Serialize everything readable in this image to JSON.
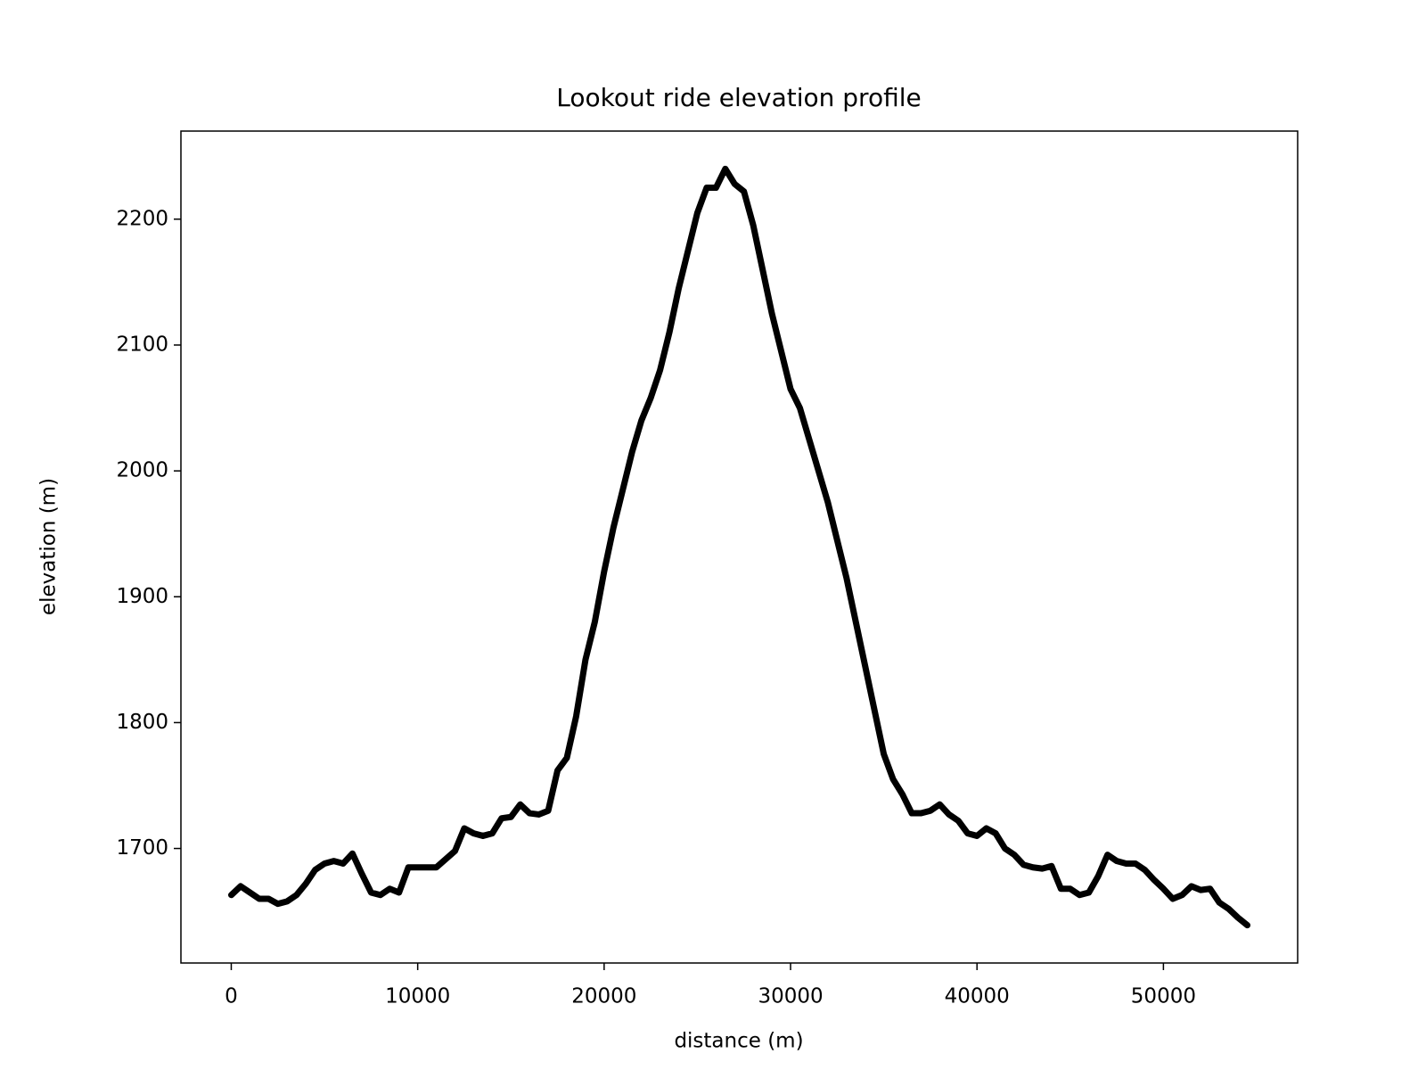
{
  "chart_data": {
    "type": "line",
    "title": "Lookout ride elevation profile",
    "x_label": "distance (m)",
    "y_label": "elevation (m)",
    "x": [
      0,
      500,
      1000,
      1500,
      2000,
      2500,
      3000,
      3500,
      4000,
      4500,
      5000,
      5500,
      6000,
      6500,
      7000,
      7500,
      8000,
      8500,
      9000,
      9500,
      10000,
      11000,
      12000,
      12500,
      13000,
      13500,
      14000,
      14500,
      15000,
      15500,
      16000,
      16500,
      17000,
      17500,
      18000,
      18500,
      19000,
      19500,
      20000,
      20500,
      21000,
      21500,
      22000,
      22500,
      23000,
      23500,
      24000,
      24500,
      25000,
      25500,
      26000,
      26500,
      27000,
      27500,
      28000,
      28500,
      29000,
      29500,
      30000,
      30500,
      31000,
      31500,
      32000,
      32500,
      33000,
      33500,
      34000,
      34500,
      35000,
      35500,
      36000,
      36500,
      37000,
      37500,
      38000,
      38500,
      39000,
      39500,
      40000,
      40500,
      41000,
      41500,
      42000,
      42500,
      43000,
      43500,
      44000,
      44500,
      45000,
      45500,
      46000,
      46500,
      47000,
      47500,
      48000,
      48500,
      49000,
      49500,
      50000,
      50500,
      51000,
      51500,
      52000,
      52500,
      53000,
      53500,
      54000,
      54500
    ],
    "series": [
      {
        "name": "elevation",
        "color": "#000000",
        "values": [
          1663,
          1670,
          1665,
          1660,
          1660,
          1656,
          1658,
          1663,
          1672,
          1683,
          1688,
          1690,
          1688,
          1696,
          1680,
          1665,
          1663,
          1668,
          1665,
          1685,
          1685,
          1685,
          1698,
          1716,
          1712,
          1710,
          1712,
          1724,
          1725,
          1735,
          1728,
          1727,
          1730,
          1762,
          1772,
          1805,
          1850,
          1880,
          1920,
          1955,
          1985,
          2015,
          2040,
          2058,
          2080,
          2110,
          2145,
          2175,
          2205,
          2225,
          2225,
          2240,
          2228,
          2222,
          2195,
          2160,
          2125,
          2095,
          2065,
          2050,
          2025,
          2000,
          1975,
          1945,
          1915,
          1880,
          1845,
          1810,
          1775,
          1755,
          1743,
          1728,
          1728,
          1730,
          1735,
          1727,
          1722,
          1712,
          1710,
          1716,
          1712,
          1700,
          1695,
          1687,
          1685,
          1684,
          1686,
          1668,
          1668,
          1663,
          1665,
          1678,
          1695,
          1690,
          1688,
          1688,
          1683,
          1675,
          1668,
          1660,
          1663,
          1670,
          1667,
          1668,
          1657,
          1652,
          1645,
          1639
        ]
      }
    ],
    "xlim": [
      -2700,
      57200
    ],
    "ylim": [
      1609,
      2270
    ],
    "xticks": [
      0,
      10000,
      20000,
      30000,
      40000,
      50000
    ],
    "yticks": [
      1700,
      1800,
      1900,
      2000,
      2100,
      2200
    ]
  }
}
